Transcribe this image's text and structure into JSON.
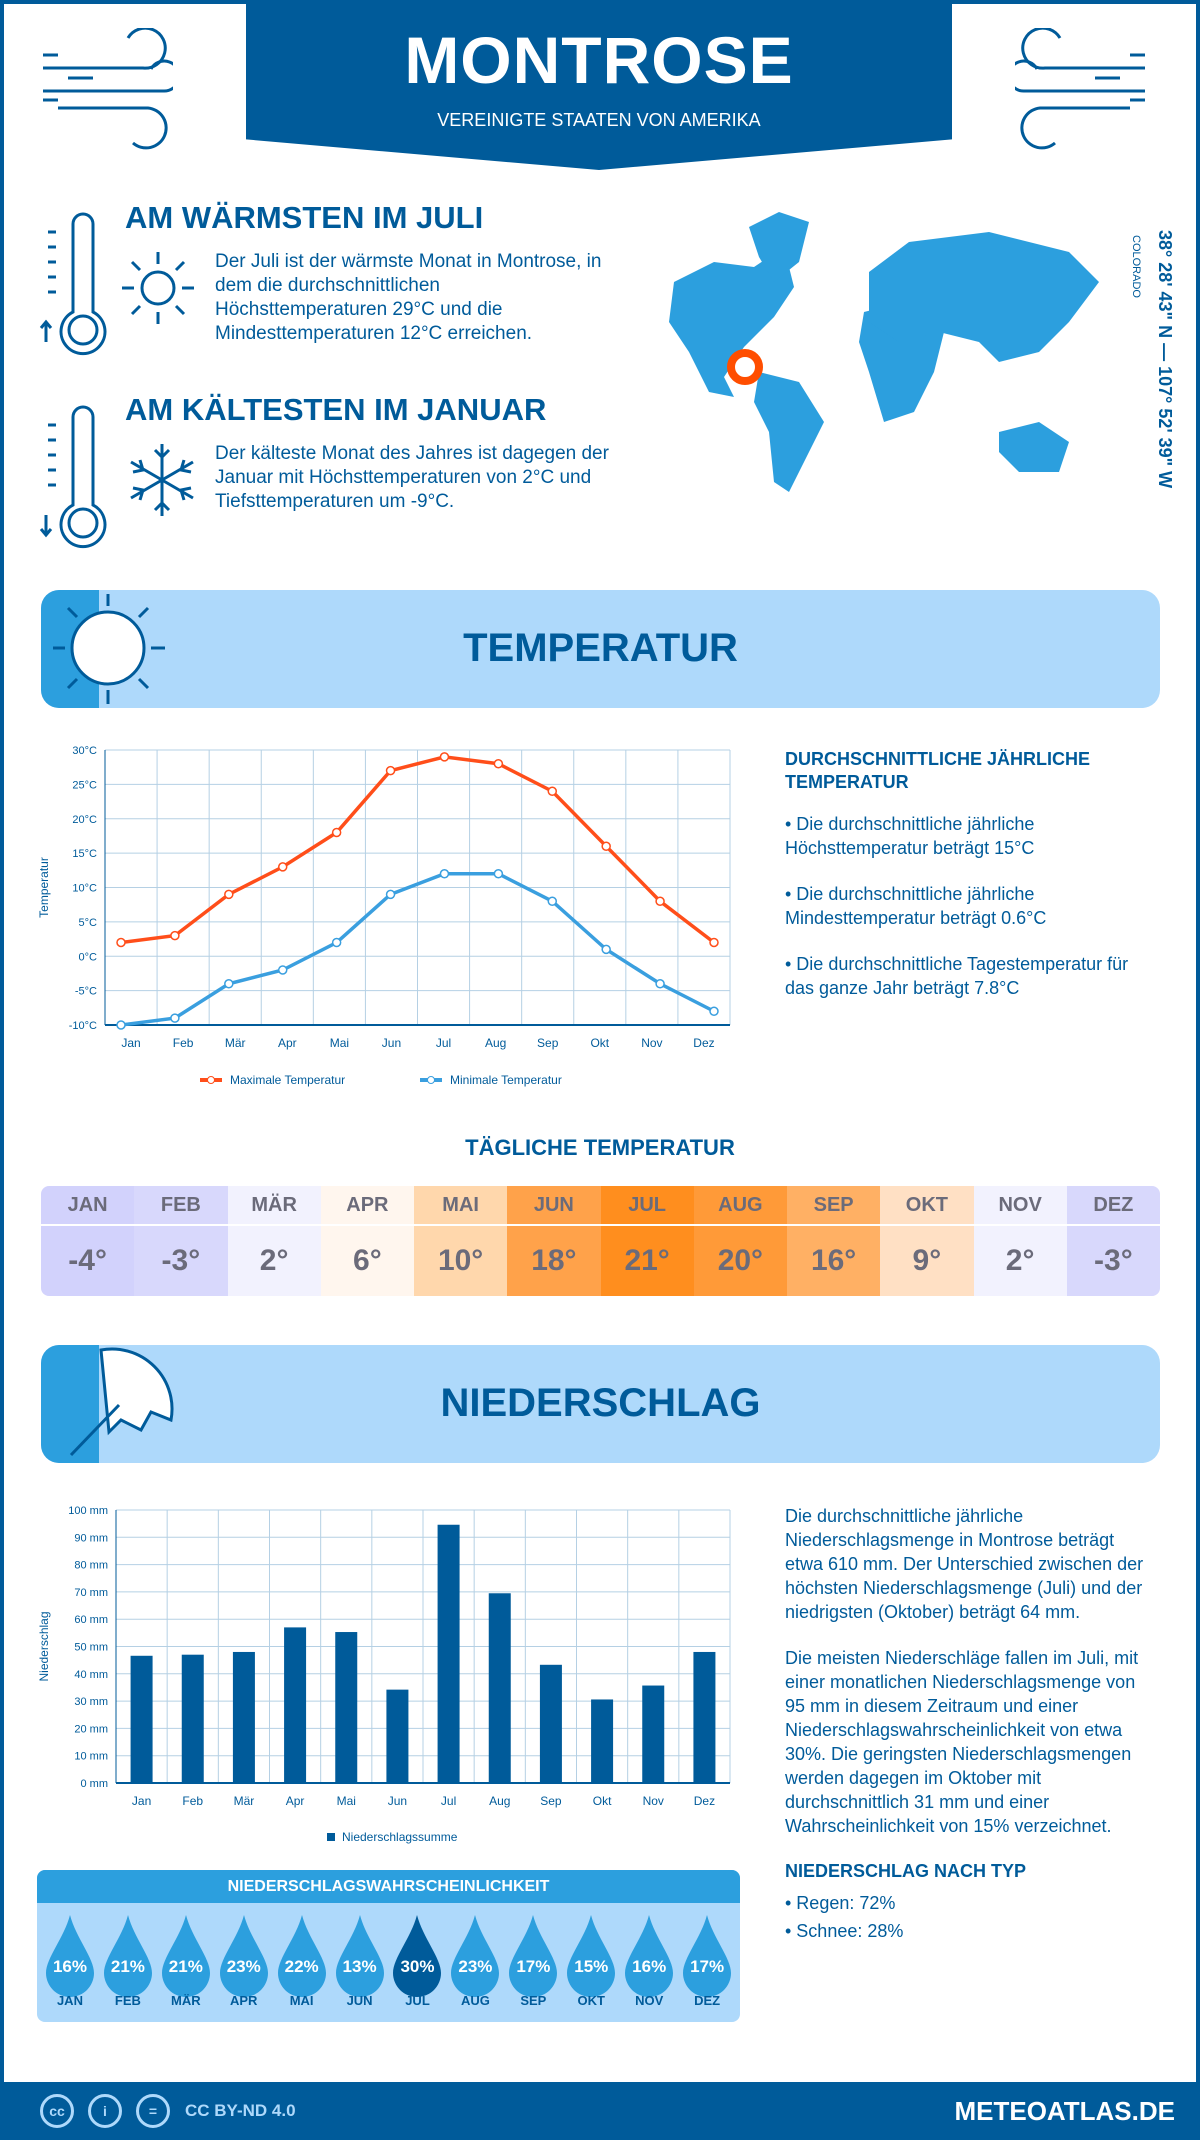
{
  "header": {
    "title": "MONTROSE",
    "subtitle": "VEREINIGTE STAATEN VON AMERIKA"
  },
  "warmest": {
    "title": "AM WÄRMSTEN IM JULI",
    "text": "Der Juli ist der wärmste Monat in Montrose, in dem die durchschnittlichen Höchsttemperaturen 29°C und die Mindesttemperaturen 12°C erreichen."
  },
  "coldest": {
    "title": "AM KÄLTESTEN IM JANUAR",
    "text": "Der kälteste Monat des Jahres ist dagegen der Januar mit Höchsttemperaturen von 2°C und Tiefsttemperaturen um -9°C."
  },
  "location": {
    "coords": "38° 28' 43\" N — 107° 52' 39\" W",
    "region": "COLORADO",
    "marker_color": "#ff4e00"
  },
  "temperature": {
    "section_title": "TEMPERATUR",
    "summary_title": "DURCHSCHNITTLICHE JÄHRLICHE TEMPERATUR",
    "bullets": [
      "• Die durchschnittliche jährliche Höchsttemperatur beträgt 15°C",
      "• Die durchschnittliche jährliche Mindesttemperatur beträgt 0.6°C",
      "• Die durchschnittliche Tagestemperatur für das ganze Jahr beträgt 7.8°C"
    ],
    "daily_title": "TÄGLICHE TEMPERATUR",
    "daily": [
      {
        "month": "JAN",
        "value": "-4°",
        "color": "#d2d2fc"
      },
      {
        "month": "FEB",
        "value": "-3°",
        "color": "#d8d8fc"
      },
      {
        "month": "MÄR",
        "value": "2°",
        "color": "#f2f2fe"
      },
      {
        "month": "APR",
        "value": "6°",
        "color": "#fff6ee"
      },
      {
        "month": "MAI",
        "value": "10°",
        "color": "#ffd7ac"
      },
      {
        "month": "JUN",
        "value": "18°",
        "color": "#ffa24a"
      },
      {
        "month": "JUL",
        "value": "21°",
        "color": "#ff8e1e"
      },
      {
        "month": "AUG",
        "value": "20°",
        "color": "#ff9a38"
      },
      {
        "month": "SEP",
        "value": "16°",
        "color": "#ffb064"
      },
      {
        "month": "OKT",
        "value": "9°",
        "color": "#ffe0c4"
      },
      {
        "month": "NOV",
        "value": "2°",
        "color": "#f2f2fe"
      },
      {
        "month": "DEZ",
        "value": "-3°",
        "color": "#d8d8fc"
      }
    ]
  },
  "precipitation": {
    "section_title": "NIEDERSCHLAG",
    "text1": "Die durchschnittliche jährliche Niederschlagsmenge in Montrose beträgt etwa 610 mm. Der Unterschied zwischen der höchsten Niederschlagsmenge (Juli) und der niedrigsten (Oktober) beträgt 64 mm.",
    "text2": "Die meisten Niederschläge fallen im Juli, mit einer monatlichen Niederschlagsmenge von 95 mm in diesem Zeitraum und einer Niederschlagswahrscheinlichkeit von etwa 30%. Die geringsten Niederschlagsmengen werden dagegen im Oktober mit durchschnittlich 31 mm und einer Wahrscheinlichkeit von 15% verzeichnet.",
    "type_title": "NIEDERSCHLAG NACH TYP",
    "types": [
      "• Regen: 72%",
      "• Schnee: 28%"
    ],
    "prob_title": "NIEDERSCHLAGSWAHRSCHEINLICHKEIT",
    "probability": [
      {
        "month": "JAN",
        "value": "16%"
      },
      {
        "month": "FEB",
        "value": "21%"
      },
      {
        "month": "MÄR",
        "value": "21%"
      },
      {
        "month": "APR",
        "value": "23%"
      },
      {
        "month": "MAI",
        "value": "22%"
      },
      {
        "month": "JUN",
        "value": "13%"
      },
      {
        "month": "JUL",
        "value": "30%",
        "highlight": true
      },
      {
        "month": "AUG",
        "value": "23%"
      },
      {
        "month": "SEP",
        "value": "17%"
      },
      {
        "month": "OKT",
        "value": "15%"
      },
      {
        "month": "NOV",
        "value": "16%"
      },
      {
        "month": "DEZ",
        "value": "17%"
      }
    ]
  },
  "chart_data": [
    {
      "type": "line",
      "categories": [
        "Jan",
        "Feb",
        "Mär",
        "Apr",
        "Mai",
        "Jun",
        "Jul",
        "Aug",
        "Sep",
        "Okt",
        "Nov",
        "Dez"
      ],
      "ylabel": "Temperatur",
      "ylim": [
        -10,
        30
      ],
      "yticks": [
        "-10°C",
        "-5°C",
        "0°C",
        "5°C",
        "10°C",
        "15°C",
        "20°C",
        "25°C",
        "30°C"
      ],
      "grid": true,
      "legend": "bottom",
      "series": [
        {
          "name": "Maximale Temperatur",
          "color": "#ff4e1a",
          "values": [
            2,
            3,
            9,
            13,
            18,
            27,
            29,
            28,
            24,
            16,
            8,
            2
          ]
        },
        {
          "name": "Minimale Temperatur",
          "color": "#3a9fdf",
          "values": [
            -10,
            -9,
            -4,
            -2,
            2,
            9,
            12,
            12,
            8,
            1,
            -4,
            -8
          ]
        }
      ]
    },
    {
      "type": "bar",
      "categories": [
        "Jan",
        "Feb",
        "Mär",
        "Apr",
        "Mai",
        "Jun",
        "Jul",
        "Aug",
        "Sep",
        "Okt",
        "Nov",
        "Dez"
      ],
      "ylabel": "Niederschlag",
      "ylim": [
        0,
        100
      ],
      "yticks": [
        "0 mm",
        "10 mm",
        "20 mm",
        "30 mm",
        "40 mm",
        "50 mm",
        "60 mm",
        "70 mm",
        "80 mm",
        "90 mm",
        "100 mm"
      ],
      "grid": true,
      "legend": "bottom",
      "series": [
        {
          "name": "Niederschlagssumme",
          "color": "#005b9a",
          "values": [
            46.6,
            47,
            48,
            57,
            55.3,
            34.2,
            94.6,
            69.5,
            43.3,
            30.6,
            35.7,
            48
          ]
        }
      ]
    }
  ],
  "footer": {
    "license": "CC BY-ND 4.0",
    "site": "METEOATLAS.DE",
    "cc": "cc"
  }
}
